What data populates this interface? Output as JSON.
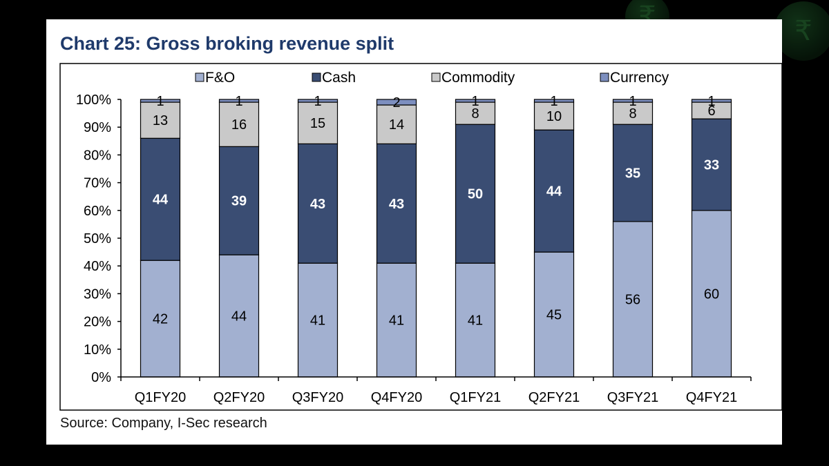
{
  "title": "Chart 25: Gross broking revenue split",
  "source": "Source: Company, I-Sec research",
  "chart_data": {
    "type": "bar",
    "stacked": true,
    "title": "Chart 25: Gross broking revenue split",
    "xlabel": "",
    "ylabel": "",
    "ylim": [
      0,
      100
    ],
    "y_ticks": [
      "0%",
      "10%",
      "20%",
      "30%",
      "40%",
      "50%",
      "60%",
      "70%",
      "80%",
      "90%",
      "100%"
    ],
    "categories": [
      "Q1FY20",
      "Q2FY20",
      "Q3FY20",
      "Q4FY20",
      "Q1FY21",
      "Q2FY21",
      "Q3FY21",
      "Q4FY21"
    ],
    "legend_position": "top",
    "series": [
      {
        "name": "F&O",
        "color": "#a2b0d0",
        "label_color": "#000000",
        "values": [
          42,
          44,
          41,
          41,
          41,
          45,
          56,
          60
        ]
      },
      {
        "name": "Cash",
        "color": "#3a4d73",
        "label_color": "#ffffff",
        "values": [
          44,
          39,
          43,
          43,
          50,
          44,
          35,
          33
        ]
      },
      {
        "name": "Commodity",
        "color": "#c9c9c9",
        "label_color": "#000000",
        "values": [
          13,
          16,
          15,
          14,
          8,
          10,
          8,
          6
        ]
      },
      {
        "name": "Currency",
        "color": "#7d8fbf",
        "label_color": "#000000",
        "values": [
          1,
          1,
          1,
          2,
          1,
          1,
          1,
          1
        ]
      }
    ]
  },
  "colors": {
    "title": "#1f3a6b",
    "background": "#000000",
    "card": "#ffffff"
  }
}
